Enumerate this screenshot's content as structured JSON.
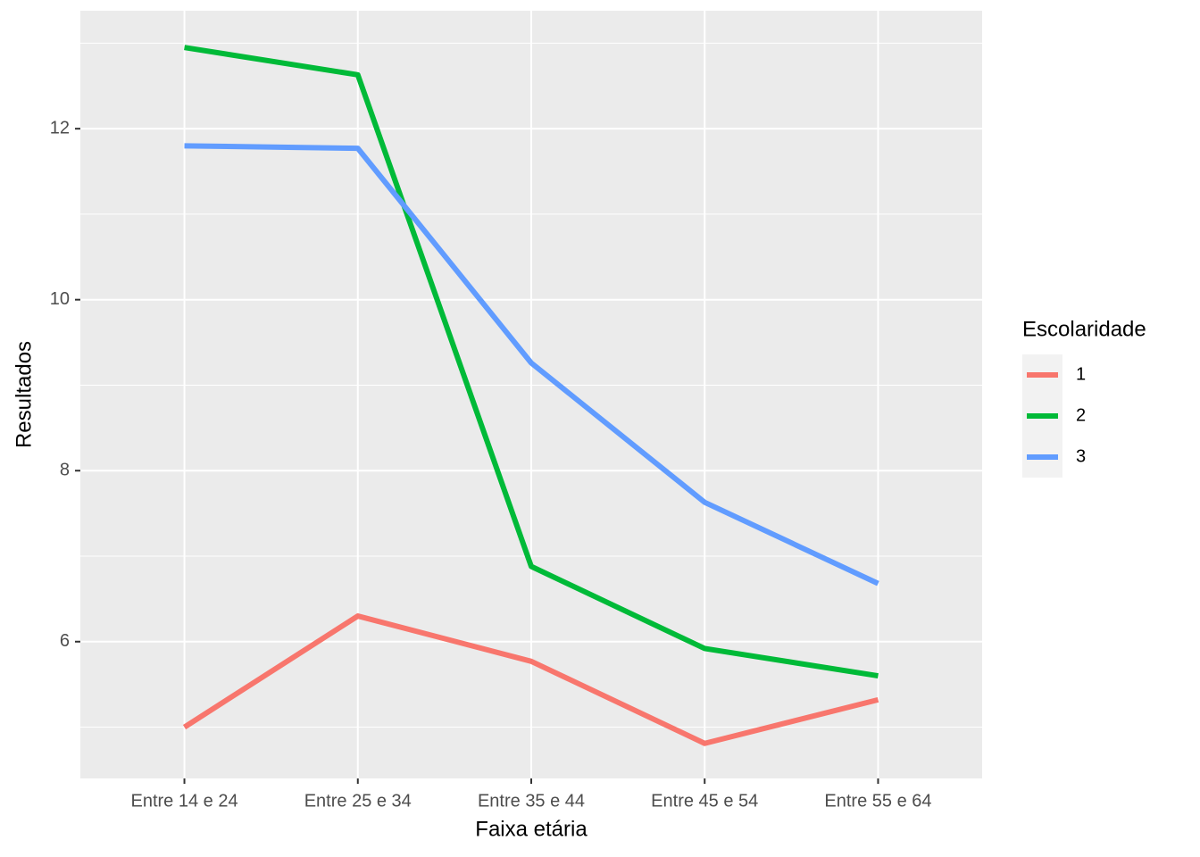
{
  "chart_data": {
    "type": "line",
    "x_label": "Faixa etária",
    "y_label": "Resultados",
    "categories": [
      "Entre 14 e 24",
      "Entre 25 e 34",
      "Entre 35 e 44",
      "Entre 45 e 54",
      "Entre 55 e 64"
    ],
    "legend_title": "Escolaridade",
    "legend_position": "right",
    "series": [
      {
        "name": "1",
        "color": "#F8766D",
        "values": [
          5.0,
          6.3,
          5.77,
          4.81,
          5.32
        ]
      },
      {
        "name": "2",
        "color": "#00BA38",
        "values": [
          12.95,
          12.63,
          6.88,
          5.92,
          5.6
        ]
      },
      {
        "name": "3",
        "color": "#619CFF",
        "values": [
          11.8,
          11.77,
          9.26,
          7.63,
          6.68
        ]
      }
    ],
    "ylim": [
      4.4,
      13.38
    ],
    "yticks": [
      6,
      8,
      10,
      12
    ],
    "minor_yticks": [
      5,
      7,
      9,
      11,
      13
    ],
    "grid": true
  }
}
